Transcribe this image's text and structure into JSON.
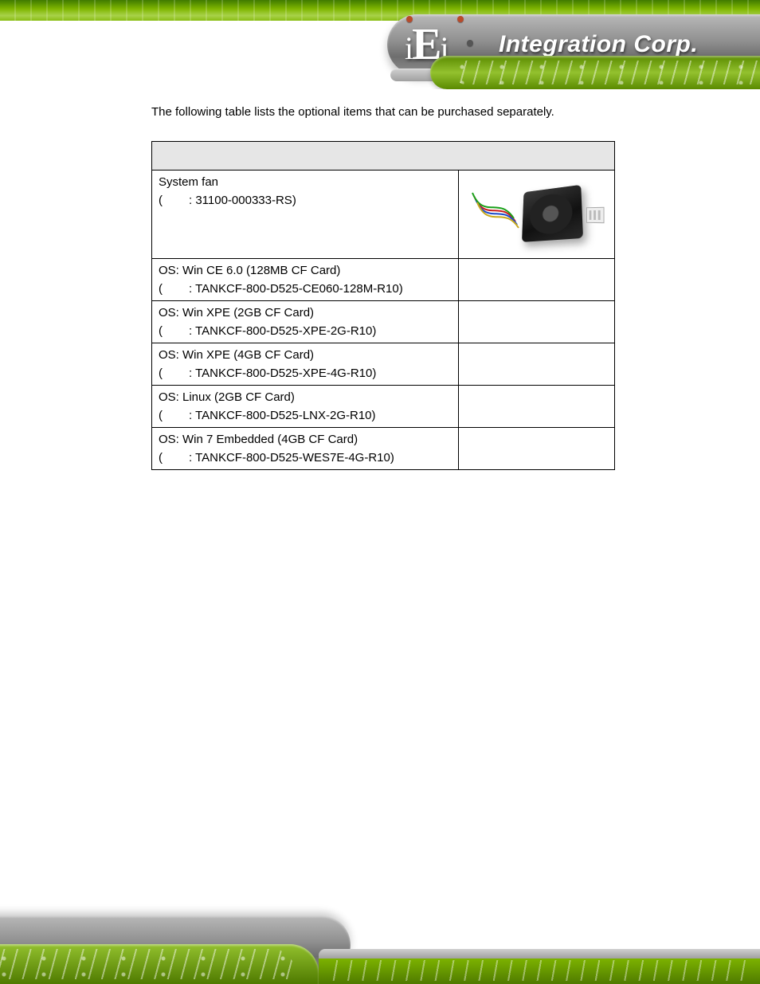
{
  "brand": {
    "logo_text": "iEi",
    "integration_text": "Integration Corp."
  },
  "intro_text": "The following table lists the optional items that can be purchased separately.",
  "table": {
    "header_bg": "#e6e6e6",
    "border_color": "#000000",
    "rows": [
      {
        "label": "System fan",
        "pn_prefix": "(",
        "pn": ": 31100-000333-RS)",
        "has_image": true
      },
      {
        "label": "OS: Win CE 6.0 (128MB CF Card)",
        "pn_prefix": "(",
        "pn": ": TANKCF-800-D525-CE060-128M-R10)",
        "has_image": false
      },
      {
        "label": "OS: Win XPE (2GB CF Card)",
        "pn_prefix": "(",
        "pn": ": TANKCF-800-D525-XPE-2G-R10)",
        "has_image": false
      },
      {
        "label": "OS: Win XPE (4GB CF Card)",
        "pn_prefix": "(",
        "pn": ": TANKCF-800-D525-XPE-4G-R10)",
        "has_image": false
      },
      {
        "label": "OS: Linux (2GB CF Card)",
        "pn_prefix": "(",
        "pn": ": TANKCF-800-D525-LNX-2G-R10)",
        "has_image": false
      },
      {
        "label": "OS: Win 7 Embedded (4GB CF Card)",
        "pn_prefix": "(",
        "pn": ": TANKCF-800-D525-WES7E-4G-R10)",
        "has_image": false
      }
    ]
  }
}
